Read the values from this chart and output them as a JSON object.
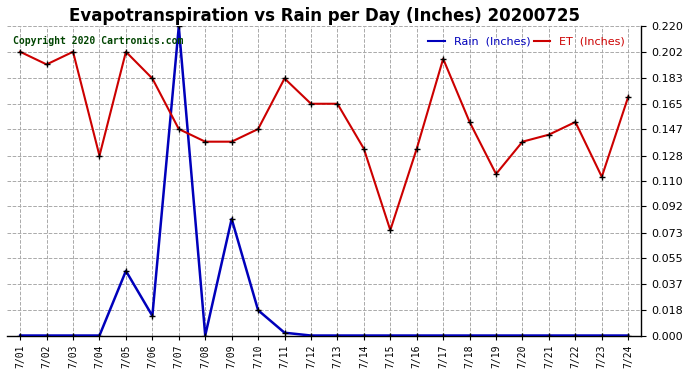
{
  "title": "Evapotranspiration vs Rain per Day (Inches) 20200725",
  "copyright": "Copyright 2020 Cartronics.com",
  "dates": [
    "7/01",
    "7/02",
    "7/03",
    "7/04",
    "7/05",
    "7/06",
    "7/07",
    "7/08",
    "7/09",
    "7/10",
    "7/11",
    "7/12",
    "7/13",
    "7/14",
    "7/15",
    "7/16",
    "7/17",
    "7/18",
    "7/19",
    "7/20",
    "7/21",
    "7/22",
    "7/23",
    "7/24"
  ],
  "rain": [
    0.0,
    0.0,
    0.0,
    0.0,
    0.046,
    0.014,
    0.22,
    0.0,
    0.083,
    0.018,
    0.002,
    0.0,
    0.0,
    0.0,
    0.0,
    0.0,
    0.0,
    0.0,
    0.0,
    0.0,
    0.0,
    0.0,
    0.0,
    0.0
  ],
  "et": [
    0.202,
    0.193,
    0.202,
    0.128,
    0.202,
    0.183,
    0.147,
    0.138,
    0.138,
    0.147,
    0.183,
    0.165,
    0.165,
    0.133,
    0.075,
    0.133,
    0.197,
    0.152,
    0.115,
    0.138,
    0.143,
    0.152,
    0.113,
    0.17
  ],
  "rain_color": "#0000bb",
  "et_color": "#cc0000",
  "marker_color": "#000000",
  "bg_color": "#ffffff",
  "grid_color": "#aaaaaa",
  "ylim": [
    0.0,
    0.22
  ],
  "yticks": [
    0.0,
    0.018,
    0.037,
    0.055,
    0.073,
    0.092,
    0.11,
    0.128,
    0.147,
    0.165,
    0.183,
    0.202,
    0.22
  ],
  "title_fontsize": 12,
  "copyright_color": "#004400",
  "legend_rain_label": "Rain  (Inches)",
  "legend_et_label": "ET  (Inches)"
}
